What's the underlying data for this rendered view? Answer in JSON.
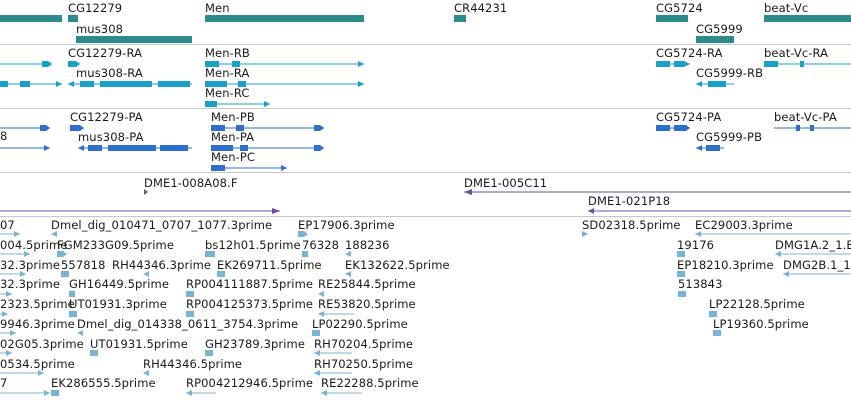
{
  "tracks": {
    "genes": {
      "color": "#2e8b8b",
      "labels": [
        "CG12279",
        "Men",
        "CR44231",
        "CG5724",
        "beat-Vc",
        "mus308",
        "CG5999"
      ]
    },
    "transcripts": {
      "color": "#1aa0c8",
      "labels": [
        "CG12279-RA",
        "Men-RB",
        "CG5724-RA",
        "beat-Vc-RA",
        "mus308-RA",
        "Men-RA",
        "CG5999-RB",
        "Men-RC"
      ]
    },
    "proteins": {
      "color": "#2d6fcc",
      "labels": [
        "8",
        "CG12279-PA",
        "Men-PB",
        "CG5724-PA",
        "beat-Vc-PA",
        "mus308-PA",
        "Men-PA",
        "CG5999-PB",
        "Men-PC"
      ]
    },
    "clones": {
      "color": "#6a4fa8",
      "labels": [
        "DME1-008A08.F",
        "DME1-005C11",
        "DME1-021P18"
      ]
    },
    "ests": {
      "color": "#78b4d6",
      "labels": [
        "07",
        "Dmel_dig_010471_0707_1077.3prime",
        "EP17906.3prime",
        "SD02318.5prime",
        "EC29003.3prime",
        "004.5prime",
        "FGM233G09.5prime",
        "bs12h01.5prime",
        "76328",
        "188236",
        "19176",
        "DMG1A.2_1.E",
        "32.3prime",
        "557818",
        "RH44346.3prime",
        "EK269711.5prime",
        "EK132622.5prime",
        "EP18210.3prime",
        "DMG2B.1_1",
        "32.3prime",
        "GH16449.5prime",
        "RP004111887.5prime",
        "RE25844.5prime",
        "513843",
        "2323.5prime",
        "UT01931.3prime",
        "RP004125373.5prime",
        "RE53820.5prime",
        "LP22128.5prime",
        "9946.3prime",
        "Dmel_dig_014338_0611_3754.3prime",
        "LP02290.5prime",
        "LP19360.5prime",
        "02G05.3prime",
        "UT01931.5prime",
        "GH23789.3prime",
        "RH70204.5prime",
        "0534.5prime",
        "RH44346.5prime",
        "RH70250.5prime",
        "7",
        "EK286555.5prime",
        "RP004212946.5prime",
        "RE22288.5prime"
      ]
    }
  }
}
